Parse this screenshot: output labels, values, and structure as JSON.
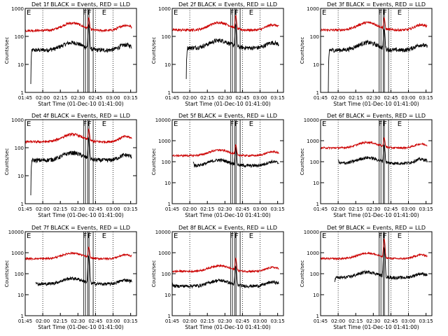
{
  "colors": {
    "events": "#000000",
    "lld": "#cc0000",
    "axes": "#000000"
  },
  "common": {
    "xlabel": "Start Time (01-Dec-10 01:41:00)",
    "ylabel": "Counts/sec",
    "x_ticks": [
      "01:45",
      "02:00",
      "02:15",
      "02:30",
      "02:45",
      "03:00",
      "03:15"
    ],
    "x_tick_minutes": [
      1.75,
      2.0,
      2.25,
      2.5,
      2.75,
      3.0,
      3.25
    ],
    "y_scale": "log",
    "xlim_hours": [
      1.75,
      3.3333
    ],
    "dotted_lines_hours": [
      2.0,
      2.75,
      3.0
    ],
    "solid_lines_hours": [
      2.5833,
      2.6083,
      2.6417,
      2.6583,
      2.7167
    ],
    "markers": [
      {
        "label": "F",
        "x_hours": 2.6
      },
      {
        "label": "F",
        "x_hours": 2.6667
      },
      {
        "label": "E",
        "x_hours": 2.875
      }
    ]
  },
  "chart_data": [
    {
      "type": "line",
      "title": "Det 1f BLACK = Events, RED = LLD",
      "ylim": [
        1,
        1000
      ],
      "y_ticks": [
        "1",
        "10",
        "100",
        "1000"
      ],
      "corner_label": "E",
      "series": [
        {
          "name": "Events",
          "level": 50,
          "start": 1.83,
          "dip_start": 2,
          "peak": 300,
          "color": "black"
        },
        {
          "name": "LLD",
          "level": 250,
          "start": 1.75,
          "peak": 500,
          "color": "red"
        }
      ]
    },
    {
      "type": "line",
      "title": "Det 2f BLACK = Events, RED = LLD",
      "ylim": [
        1,
        1000
      ],
      "y_ticks": [
        "1",
        "10",
        "100",
        "1000"
      ],
      "corner_label": "E",
      "series": [
        {
          "name": "Events",
          "level": 60,
          "start": 1.95,
          "dip_start": 3,
          "peak": 300,
          "color": "black"
        },
        {
          "name": "LLD",
          "level": 260,
          "start": 1.75,
          "peak": 600,
          "color": "red"
        }
      ]
    },
    {
      "type": "line",
      "title": "Det 3f BLACK = Events, RED = LLD",
      "ylim": [
        1,
        1000
      ],
      "y_ticks": [
        "1",
        "10",
        "100",
        "1000"
      ],
      "corner_label": "E",
      "series": [
        {
          "name": "Events",
          "level": 50,
          "start": 1.86,
          "dip_start": 1,
          "peak": 200,
          "color": "black"
        },
        {
          "name": "LLD",
          "level": 260,
          "start": 1.75,
          "peak": 500,
          "color": "red"
        }
      ]
    },
    {
      "type": "line",
      "title": "Det 4f BLACK = Events, RED = LLD",
      "ylim": [
        1,
        1000
      ],
      "y_ticks": [
        "1",
        "10",
        "100",
        "1000"
      ],
      "corner_label": "E",
      "series": [
        {
          "name": "Events",
          "level": 55,
          "start": 1.83,
          "dip_start": 2,
          "peak": 250,
          "color": "black"
        },
        {
          "name": "LLD",
          "level": 250,
          "start": 1.75,
          "peak": 500,
          "color": "red"
        }
      ]
    },
    {
      "type": "line",
      "title": "Det 5f BLACK = Events, RED = LLD",
      "ylim": [
        1,
        10000
      ],
      "y_ticks": [
        "1",
        "10",
        "100",
        "1000",
        "10000"
      ],
      "corner_label": "E",
      "series": [
        {
          "name": "Events",
          "level": 100,
          "start": 2.05,
          "dip_start": 100,
          "peak": 500,
          "color": "black"
        },
        {
          "name": "LLD",
          "level": 300,
          "start": 1.75,
          "peak": 700,
          "color": "red"
        }
      ]
    },
    {
      "type": "line",
      "title": "Det 6f BLACK = Events, RED = LLD",
      "ylim": [
        1,
        10000
      ],
      "y_ticks": [
        "1",
        "10",
        "100",
        "1000",
        "10000"
      ],
      "corner_label": "E",
      "series": [
        {
          "name": "Events",
          "level": 130,
          "start": 2.0,
          "dip_start": 130,
          "peak": 700,
          "color": "black"
        },
        {
          "name": "LLD",
          "level": 700,
          "start": 1.75,
          "peak": 1500,
          "color": "red"
        }
      ]
    },
    {
      "type": "line",
      "title": "Det 7f BLACK = Events, RED = LLD",
      "ylim": [
        1,
        10000
      ],
      "y_ticks": [
        "1",
        "10",
        "100",
        "1000",
        "10000"
      ],
      "corner_label": "E",
      "series": [
        {
          "name": "Events",
          "level": 50,
          "start": 1.9,
          "dip_start": 40,
          "peak": 800,
          "color": "black"
        },
        {
          "name": "LLD",
          "level": 800,
          "start": 1.75,
          "peak": 2000,
          "color": "red"
        }
      ]
    },
    {
      "type": "line",
      "title": "Det 8f BLACK = Events, RED = LLD",
      "ylim": [
        1,
        10000
      ],
      "y_ticks": [
        "1",
        "10",
        "100",
        "1000",
        "10000"
      ],
      "corner_label": "E",
      "series": [
        {
          "name": "Events",
          "level": 40,
          "start": 1.75,
          "dip_start": 40,
          "peak": 250,
          "color": "black"
        },
        {
          "name": "LLD",
          "level": 200,
          "start": 1.75,
          "peak": 600,
          "color": "red"
        }
      ]
    },
    {
      "type": "line",
      "title": "Det 9f BLACK = Events, RED = LLD",
      "ylim": [
        1,
        10000
      ],
      "y_ticks": [
        "1",
        "10",
        "100",
        "1000",
        "10000"
      ],
      "corner_label": "E",
      "series": [
        {
          "name": "Events",
          "level": 100,
          "start": 1.95,
          "dip_start": 40,
          "peak": 2000,
          "color": "black"
        },
        {
          "name": "LLD",
          "level": 800,
          "start": 1.75,
          "peak": 5000,
          "color": "red"
        }
      ]
    }
  ]
}
